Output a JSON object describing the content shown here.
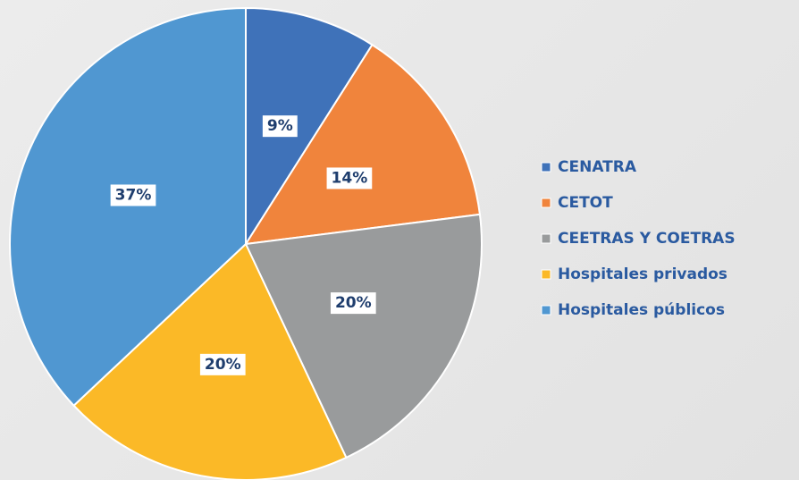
{
  "chart_data": {
    "type": "pie",
    "labels": [
      "CENATRA",
      "CETOT",
      "CEETRAS Y COETRAS",
      "Hospitales privados",
      "Hospitales públicos"
    ],
    "values": [
      9,
      14,
      20,
      20,
      37
    ],
    "value_labels": [
      "9%",
      "14%",
      "20%",
      "20%",
      "37%"
    ],
    "colors": [
      "#3f72b9",
      "#f0843c",
      "#999b9c",
      "#fbb927",
      "#5097d1"
    ]
  }
}
